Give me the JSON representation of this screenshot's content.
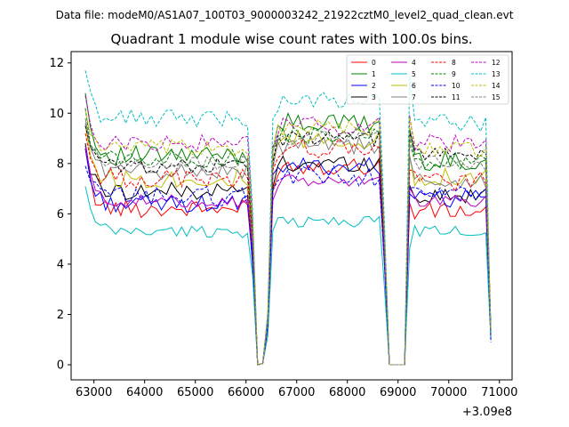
{
  "suptitle": "Data file: modeM0/AS1A07_100T03_9000003242_21922cztM0_level2_quad_clean.evt",
  "chart_data": {
    "type": "line",
    "title": "Quadrant 1 module wise count rates with 100.0s bins.",
    "xlabel": "",
    "ylabel": "",
    "x_offset_label": "+3.09e8",
    "xlim": [
      62550,
      71250
    ],
    "ylim": [
      -0.6,
      12.45
    ],
    "xticks": [
      63000,
      64000,
      65000,
      66000,
      67000,
      68000,
      69000,
      70000,
      71000
    ],
    "xtick_labels": [
      "63000",
      "64000",
      "65000",
      "66000",
      "67000",
      "68000",
      "69000",
      "70000",
      "71000"
    ],
    "yticks": [
      0,
      2,
      4,
      6,
      8,
      10,
      12
    ],
    "ytick_labels": [
      "0",
      "2",
      "4",
      "6",
      "8",
      "10",
      "12"
    ],
    "legend_position": "top-right",
    "x_start": 62830,
    "x_step": 100,
    "gaps": [
      [
        66130,
        66330
      ],
      [
        68730,
        69130
      ]
    ],
    "gap_value": 0,
    "series": [
      {
        "name": "0",
        "color": "#ff0000",
        "dashed": false,
        "seg1": 6.2,
        "seg2": 7.9,
        "seg3": 6.1,
        "start": 8.6,
        "jitter": 0.35,
        "phase": 0
      },
      {
        "name": "1",
        "color": "#008000",
        "dashed": false,
        "seg1": 8.3,
        "seg2": 9.6,
        "seg3": 8.1,
        "start": 10.8,
        "jitter": 0.4,
        "phase": 1
      },
      {
        "name": "2",
        "color": "#0000ff",
        "dashed": false,
        "seg1": 6.4,
        "seg2": 7.9,
        "seg3": 6.6,
        "start": 8.6,
        "jitter": 0.35,
        "phase": 2
      },
      {
        "name": "3",
        "color": "#000000",
        "dashed": false,
        "seg1": 6.9,
        "seg2": 8.0,
        "seg3": 6.7,
        "start": 8.8,
        "jitter": 0.35,
        "phase": 3
      },
      {
        "name": "4",
        "color": "#bf00bf",
        "dashed": false,
        "seg1": 6.5,
        "seg2": 7.3,
        "seg3": 6.5,
        "start": 8.7,
        "jitter": 0.25,
        "phase": 4
      },
      {
        "name": "5",
        "color": "#00bfbf",
        "dashed": false,
        "seg1": 5.3,
        "seg2": 5.7,
        "seg3": 5.3,
        "start": 7.1,
        "jitter": 0.25,
        "phase": 5
      },
      {
        "name": "6",
        "color": "#bfbf00",
        "dashed": false,
        "seg1": 7.4,
        "seg2": 8.9,
        "seg3": 7.5,
        "start": 9.5,
        "jitter": 0.4,
        "phase": 6
      },
      {
        "name": "7",
        "color": "#808080",
        "dashed": false,
        "seg1": 7.7,
        "seg2": 8.7,
        "seg3": 7.3,
        "start": 9.8,
        "jitter": 0.35,
        "phase": 7
      },
      {
        "name": "8",
        "color": "#ff0000",
        "dashed": true,
        "seg1": 7.4,
        "seg2": 8.6,
        "seg3": 7.3,
        "start": 9.2,
        "jitter": 0.4,
        "phase": 8
      },
      {
        "name": "9",
        "color": "#008000",
        "dashed": true,
        "seg1": 8.2,
        "seg2": 9.1,
        "seg3": 8.0,
        "start": 10.2,
        "jitter": 0.35,
        "phase": 9
      },
      {
        "name": "10",
        "color": "#0000ff",
        "dashed": true,
        "seg1": 6.7,
        "seg2": 7.5,
        "seg3": 6.8,
        "start": 7.9,
        "jitter": 0.4,
        "phase": 10
      },
      {
        "name": "11",
        "color": "#000000",
        "dashed": true,
        "seg1": 7.9,
        "seg2": 9.0,
        "seg3": 8.4,
        "start": 9.5,
        "jitter": 0.3,
        "phase": 11
      },
      {
        "name": "12",
        "color": "#bf00bf",
        "dashed": true,
        "seg1": 8.8,
        "seg2": 9.5,
        "seg3": 8.8,
        "start": 10.7,
        "jitter": 0.35,
        "phase": 12
      },
      {
        "name": "13",
        "color": "#00bfbf",
        "dashed": true,
        "seg1": 9.8,
        "seg2": 10.5,
        "seg3": 9.6,
        "start": 11.7,
        "jitter": 0.35,
        "phase": 13
      },
      {
        "name": "14",
        "color": "#bfbf00",
        "dashed": true,
        "seg1": 8.6,
        "seg2": 9.4,
        "seg3": 8.6,
        "start": 10.1,
        "jitter": 0.35,
        "phase": 14
      },
      {
        "name": "15",
        "color": "#808080",
        "dashed": true,
        "seg1": 8.0,
        "seg2": 9.0,
        "seg3": 8.0,
        "start": 9.6,
        "jitter": 0.3,
        "phase": 15
      }
    ],
    "segments_x": [
      [
        62830,
        66030
      ],
      [
        66430,
        68630
      ],
      [
        69230,
        70730
      ]
    ],
    "ramp_points": {
      "before_gap1": 66030,
      "after_gap1": 66430,
      "before_gap2": 68630,
      "after_gap2": 69230,
      "end": 70830
    },
    "end_values": [
      1.2,
      1.3,
      1.0,
      1.4,
      1.1,
      1.0,
      1.3,
      1.2,
      1.4,
      1.5,
      0.9,
      1.3,
      1.2,
      1.1,
      1.4,
      1.3
    ]
  }
}
